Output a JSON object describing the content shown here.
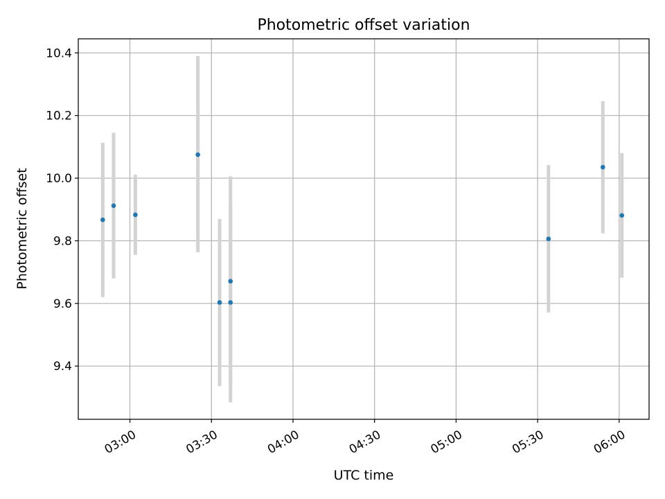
{
  "chart_data": {
    "type": "scatter",
    "title": "Photometric offset variation",
    "xlabel": "UTC time",
    "ylabel": "Photometric offset",
    "x_axis_type": "time",
    "xlim": [
      "02:41",
      "06:11"
    ],
    "ylim": [
      9.23,
      10.445
    ],
    "x_ticks": [
      "03:00",
      "03:30",
      "04:00",
      "04:30",
      "05:00",
      "05:30",
      "06:00"
    ],
    "y_ticks": [
      9.4,
      9.6,
      9.8,
      10.0,
      10.2,
      10.4
    ],
    "y_tick_labels": [
      "9.4",
      "9.6",
      "9.8",
      "10.0",
      "10.2",
      "10.4"
    ],
    "grid": true,
    "legend": "none",
    "series": [
      {
        "points": [
          {
            "x": "02:50",
            "y": 9.867,
            "ylow": 9.62,
            "yhigh": 10.113
          },
          {
            "x": "02:54",
            "y": 9.912,
            "ylow": 9.68,
            "yhigh": 10.145
          },
          {
            "x": "03:02",
            "y": 9.883,
            "ylow": 9.755,
            "yhigh": 10.011
          },
          {
            "x": "03:25",
            "y": 10.075,
            "ylow": 9.763,
            "yhigh": 10.39
          },
          {
            "x": "03:33",
            "y": 9.603,
            "ylow": 9.336,
            "yhigh": 9.87
          },
          {
            "x": "03:37",
            "y": 9.603,
            "ylow": 9.284,
            "yhigh": 9.922
          },
          {
            "x": "03:37",
            "y": 9.671,
            "ylow": 9.336,
            "yhigh": 10.006
          },
          {
            "x": "05:34",
            "y": 9.806,
            "ylow": 9.571,
            "yhigh": 10.042
          },
          {
            "x": "05:54",
            "y": 10.035,
            "ylow": 9.824,
            "yhigh": 10.246
          },
          {
            "x": "06:01",
            "y": 9.881,
            "ylow": 9.682,
            "yhigh": 10.08
          }
        ]
      }
    ]
  },
  "colors": {
    "marker": "#1f77b4",
    "errorbar": "#d3d3d3",
    "grid": "#b0b0b0",
    "axes": "#000000"
  }
}
